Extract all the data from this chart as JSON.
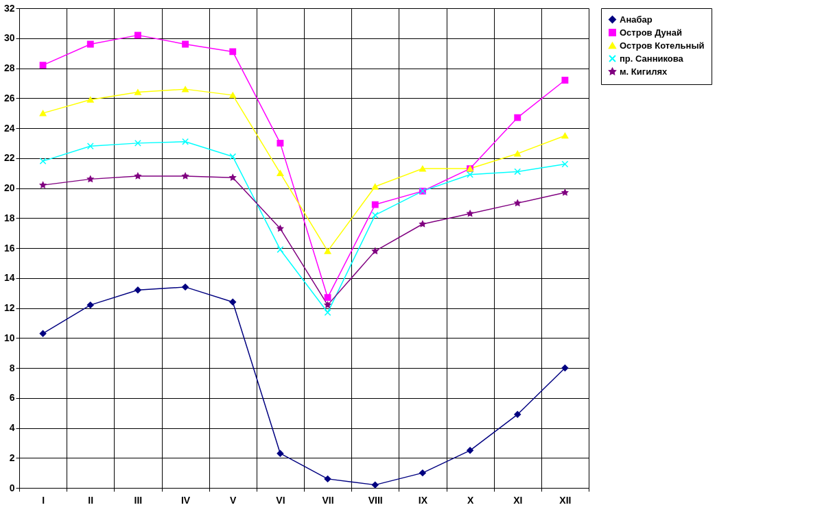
{
  "chart_data": {
    "type": "line",
    "categories": [
      "I",
      "II",
      "III",
      "IV",
      "V",
      "VI",
      "VII",
      "VIII",
      "IX",
      "X",
      "XI",
      "XII"
    ],
    "series": [
      {
        "name": "Анабар",
        "color": "#000080",
        "marker": "diamond",
        "values": [
          10.3,
          12.2,
          13.2,
          13.4,
          12.4,
          2.3,
          0.6,
          0.2,
          1.0,
          2.5,
          4.9,
          8.0
        ]
      },
      {
        "name": "Остров Дунай",
        "color": "#ff00ff",
        "marker": "square",
        "values": [
          28.2,
          29.6,
          30.2,
          29.6,
          29.1,
          23.0,
          12.7,
          18.9,
          19.8,
          21.3,
          24.7,
          27.2
        ]
      },
      {
        "name": "Остров Котельный",
        "color": "#ffff00",
        "marker": "triangle",
        "values": [
          25.0,
          25.9,
          26.4,
          26.6,
          26.2,
          21.0,
          15.8,
          20.1,
          21.3,
          21.3,
          22.3,
          23.5
        ]
      },
      {
        "name": "пр. Санникова",
        "color": "#00ffff",
        "marker": "cross",
        "values": [
          21.8,
          22.8,
          23.0,
          23.1,
          22.1,
          15.9,
          11.7,
          18.2,
          19.8,
          20.9,
          21.1,
          21.6
        ]
      },
      {
        "name": "м. Кигилях",
        "color": "#800080",
        "marker": "star",
        "values": [
          20.2,
          20.6,
          20.8,
          20.8,
          20.7,
          17.3,
          12.2,
          15.8,
          17.6,
          18.3,
          19.0,
          19.7
        ]
      }
    ],
    "ylim": [
      0,
      32
    ],
    "yticks": [
      0,
      2,
      4,
      6,
      8,
      10,
      12,
      14,
      16,
      18,
      20,
      22,
      24,
      26,
      28,
      30,
      32
    ],
    "grid": true,
    "legend": "right",
    "line_style": "solid"
  }
}
